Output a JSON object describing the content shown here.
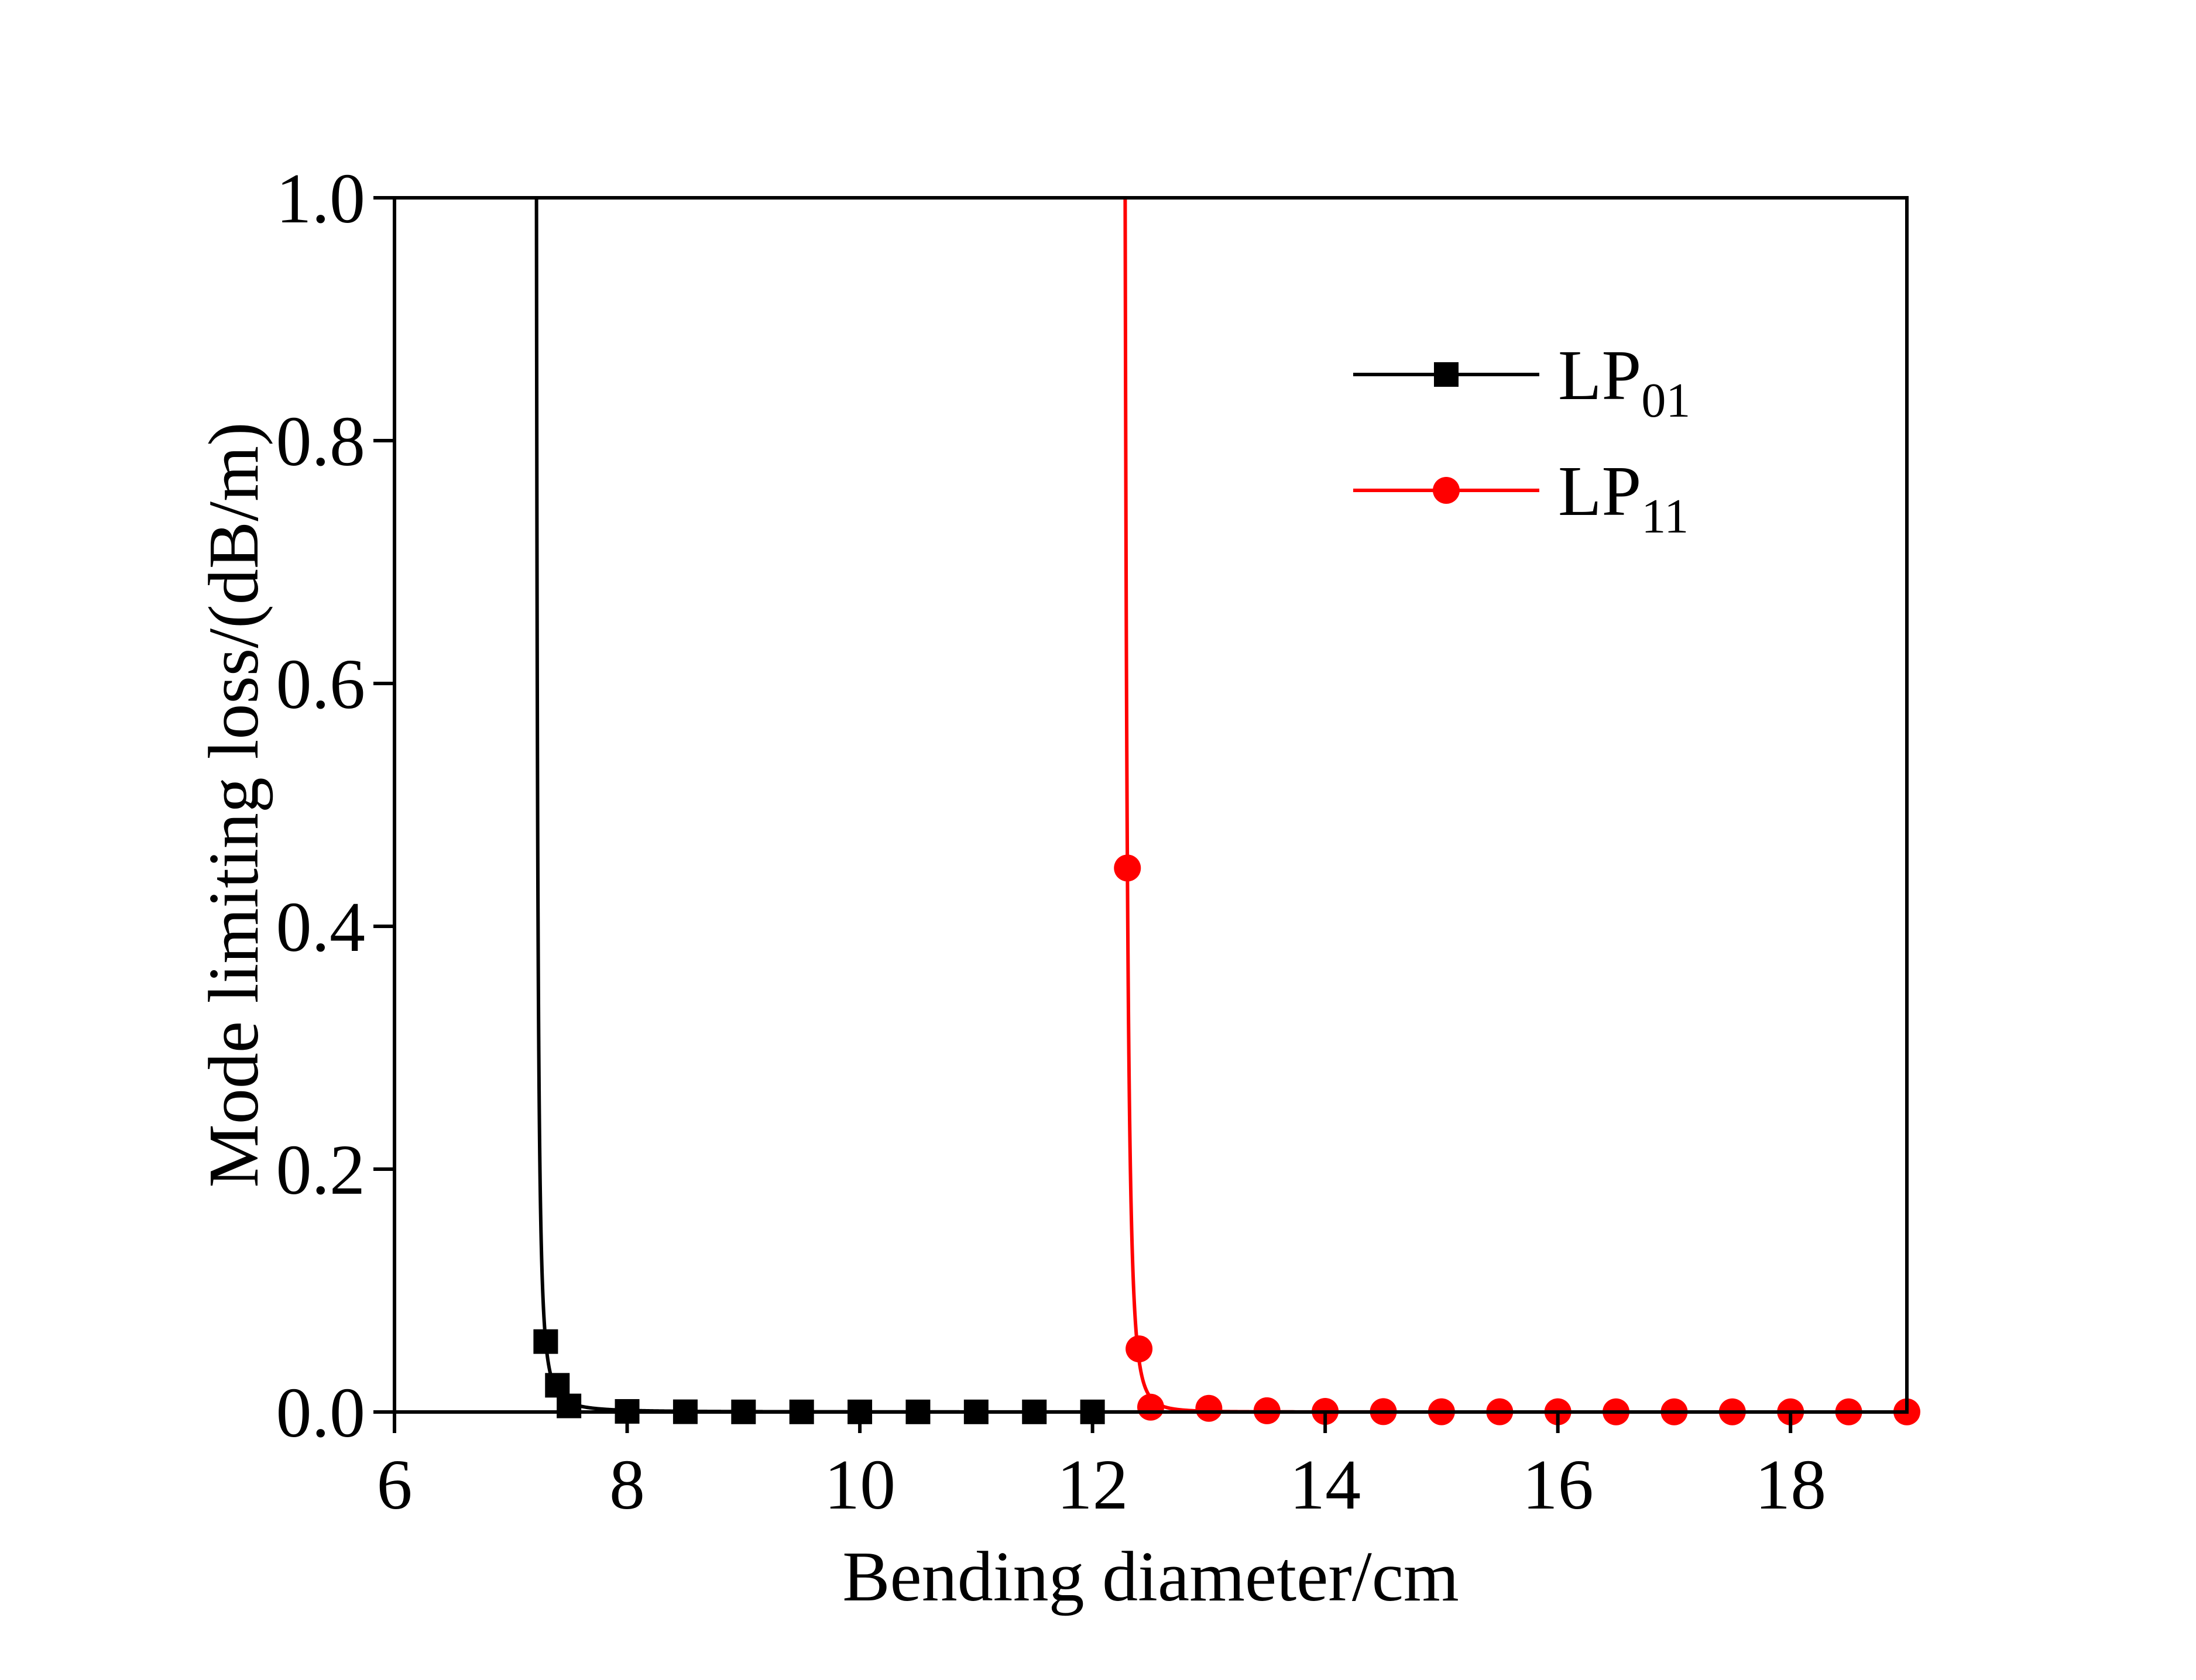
{
  "chart_data": {
    "type": "line",
    "title": "",
    "xlabel": "Bending diameter/cm",
    "ylabel": "Mode limiting loss/(dB/m)",
    "xlim": [
      6,
      19
    ],
    "ylim": [
      0,
      1.0
    ],
    "xticks": [
      "6",
      "8",
      "10",
      "12",
      "14",
      "16",
      "18"
    ],
    "yticks": [
      "0.0",
      "0.2",
      "0.4",
      "0.6",
      "0.8",
      "1.0"
    ],
    "grid": false,
    "legend_position": "top-right",
    "series": [
      {
        "name": "LP01",
        "name_main": "LP",
        "name_sub": "01",
        "color": "#000000",
        "marker": "square",
        "x": [
          7.3,
          7.4,
          7.5,
          8.0,
          8.5,
          9.0,
          9.5,
          10.0,
          10.5,
          11.0,
          11.5,
          12.0
        ],
        "y": [
          0.058,
          0.022,
          0.005,
          0.0005,
          0.0002,
          0.0001,
          0.0001,
          0.0001,
          0.0001,
          0.0001,
          0.0001,
          0.0001
        ]
      },
      {
        "name": "LP11",
        "name_main": "LP",
        "name_sub": "11",
        "color": "#ff0000",
        "marker": "circle",
        "x": [
          12.3,
          12.4,
          12.5,
          13.0,
          13.5,
          14.0,
          14.5,
          15.0,
          15.5,
          16.0,
          16.5,
          17.0,
          17.5,
          18.0,
          18.5,
          19.0
        ],
        "y": [
          0.448,
          0.052,
          0.004,
          0.003,
          0.001,
          0.0005,
          0.0003,
          0.0002,
          0.0002,
          0.0002,
          0.0001,
          0.0001,
          0.0001,
          0.0001,
          0.0001,
          0.0001
        ]
      }
    ]
  }
}
